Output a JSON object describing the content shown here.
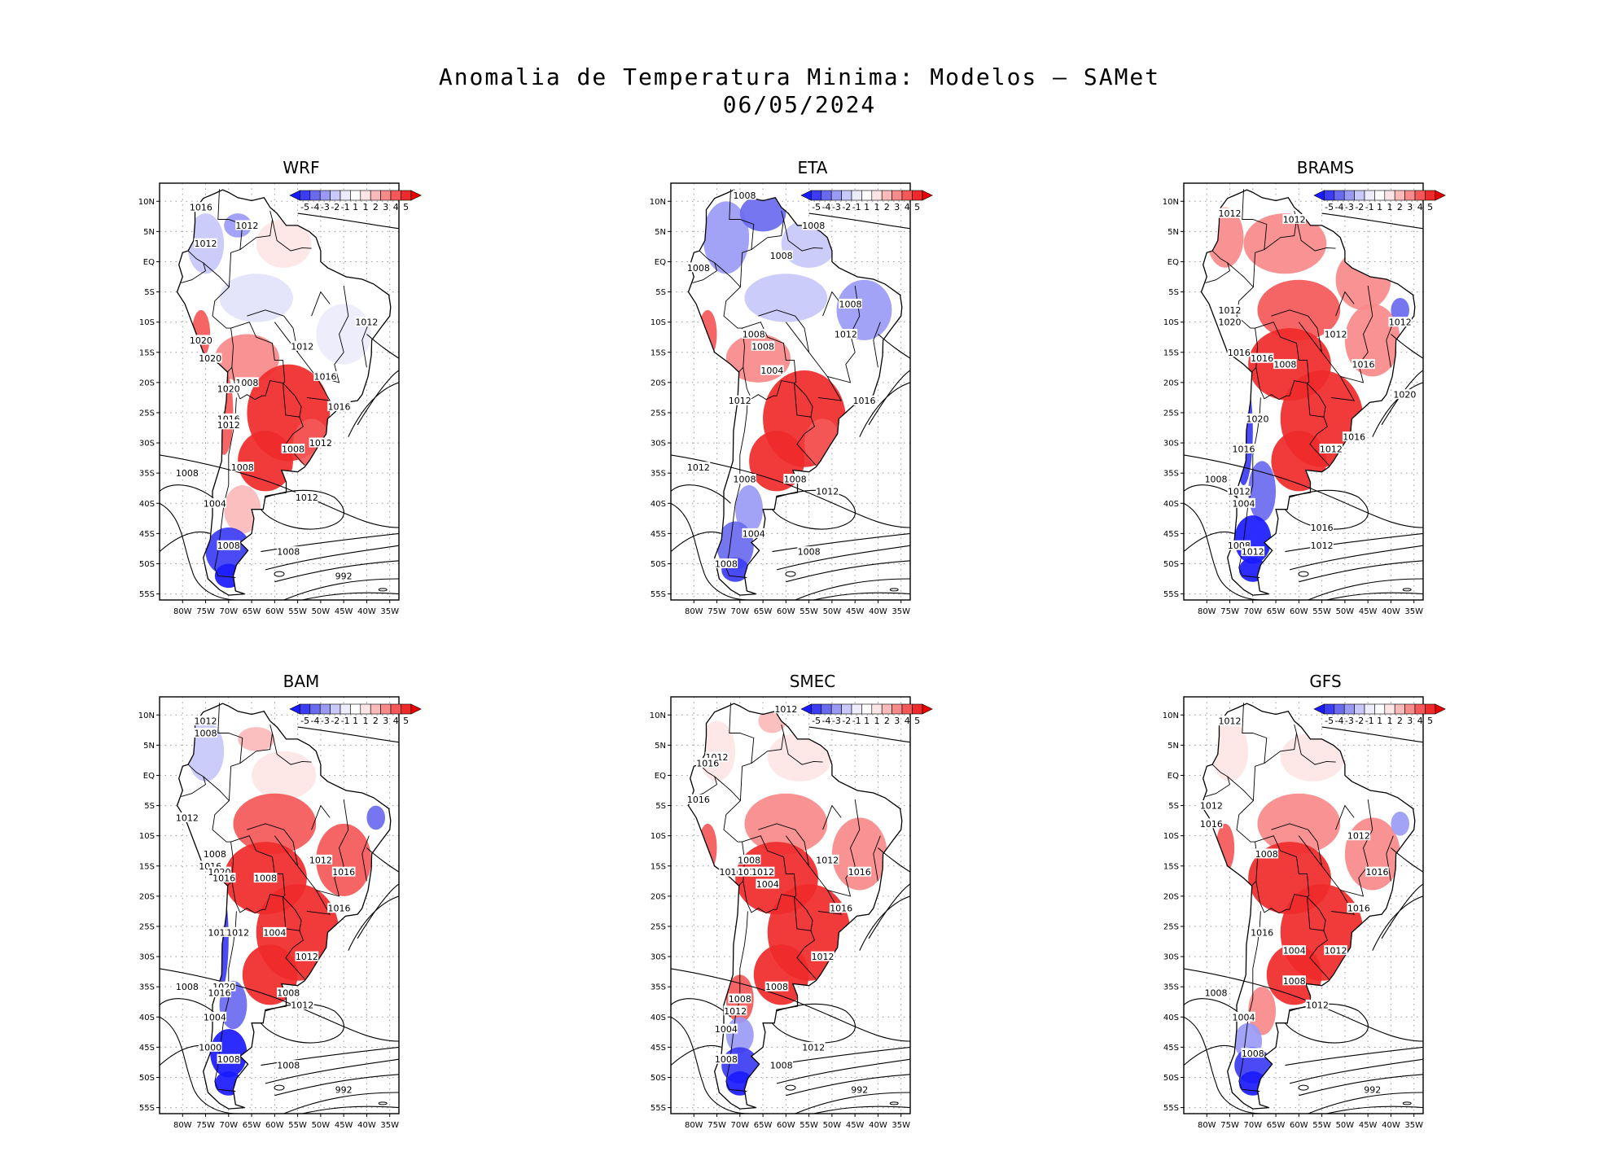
{
  "figure": {
    "title_line1": "Anomalia de Temperatura Minima: Modelos — SAMet",
    "title_line2": "06/05/2024"
  },
  "axes": {
    "lat_labels": [
      "10N",
      "5N",
      "EQ",
      "5S",
      "10S",
      "15S",
      "20S",
      "25S",
      "30S",
      "35S",
      "40S",
      "45S",
      "50S",
      "55S"
    ],
    "lon_labels": [
      "80W",
      "75W",
      "70W",
      "65W",
      "60W",
      "55W",
      "50W",
      "45W",
      "40W",
      "35W"
    ]
  },
  "colorbar": {
    "tick_labels": [
      "-5",
      "-4",
      "-3",
      "-2",
      "-1",
      "1",
      "1",
      "2",
      "3",
      "4",
      "5"
    ],
    "colors": [
      "#1a1aff",
      "#3c3cf5",
      "#6a6af0",
      "#9a9af5",
      "#c8c8fa",
      "#ececfc",
      "#ffffff",
      "#fde5e5",
      "#fbbaba",
      "#f88a8a",
      "#f45858",
      "#f02a2a",
      "#e60000"
    ]
  },
  "panels": [
    {
      "name": "WRF",
      "isobars": [
        {
          "label": "1016",
          "lat": 9,
          "lon": -76
        },
        {
          "label": "1012",
          "lat": 6,
          "lon": -66
        },
        {
          "label": "1012",
          "lat": 3,
          "lon": -75
        },
        {
          "label": "1012",
          "lat": -10,
          "lon": -40
        },
        {
          "label": "1020",
          "lat": -13,
          "lon": -76
        },
        {
          "label": "1020",
          "lat": -16,
          "lon": -74
        },
        {
          "label": "1012",
          "lat": -14,
          "lon": -54
        },
        {
          "label": "1016",
          "lat": -19,
          "lon": -49
        },
        {
          "label": "1008",
          "lat": -20,
          "lon": -66
        },
        {
          "label": "1020",
          "lat": -21,
          "lon": -70
        },
        {
          "label": "1016",
          "lat": -24,
          "lon": -46
        },
        {
          "label": "1016",
          "lat": -26,
          "lon": -70
        },
        {
          "label": "1012",
          "lat": -27,
          "lon": -70
        },
        {
          "label": "1008",
          "lat": -31,
          "lon": -56
        },
        {
          "label": "1012",
          "lat": -30,
          "lon": -50
        },
        {
          "label": "1008",
          "lat": -34,
          "lon": -67
        },
        {
          "label": "1008",
          "lat": -35,
          "lon": -79
        },
        {
          "label": "1012",
          "lat": -39,
          "lon": -53
        },
        {
          "label": "1004",
          "lat": -40,
          "lon": -73
        },
        {
          "label": "1008",
          "lat": -47,
          "lon": -70
        },
        {
          "label": "1008",
          "lat": -48,
          "lon": -57
        },
        {
          "label": "992",
          "lat": -52,
          "lon": -45
        }
      ]
    },
    {
      "name": "ETA",
      "isobars": [
        {
          "label": "1008",
          "lat": 11,
          "lon": -69
        },
        {
          "label": "1008",
          "lat": 6,
          "lon": -54
        },
        {
          "label": "1008",
          "lat": 1,
          "lon": -61
        },
        {
          "label": "1008",
          "lat": -1,
          "lon": -79
        },
        {
          "label": "1008",
          "lat": -7,
          "lon": -46
        },
        {
          "label": "1012",
          "lat": -12,
          "lon": -47
        },
        {
          "label": "1008",
          "lat": -12,
          "lon": -67
        },
        {
          "label": "1008",
          "lat": -14,
          "lon": -65
        },
        {
          "label": "1004",
          "lat": -18,
          "lon": -63
        },
        {
          "label": "1012",
          "lat": -23,
          "lon": -70
        },
        {
          "label": "1016",
          "lat": -23,
          "lon": -43
        },
        {
          "label": "1012",
          "lat": -34,
          "lon": -79
        },
        {
          "label": "1008",
          "lat": -36,
          "lon": -69
        },
        {
          "label": "1008",
          "lat": -36,
          "lon": -58
        },
        {
          "label": "1012",
          "lat": -38,
          "lon": -51
        },
        {
          "label": "1004",
          "lat": -45,
          "lon": -67
        },
        {
          "label": "1008",
          "lat": -48,
          "lon": -55
        },
        {
          "label": "1008",
          "lat": -50,
          "lon": -73
        }
      ]
    },
    {
      "name": "BRAMS",
      "isobars": [
        {
          "label": "1012",
          "lat": 8,
          "lon": -75
        },
        {
          "label": "1012",
          "lat": 7,
          "lon": -61
        },
        {
          "label": "1012",
          "lat": -8,
          "lon": -75
        },
        {
          "label": "1012",
          "lat": -10,
          "lon": -38
        },
        {
          "label": "1020",
          "lat": -10,
          "lon": -75
        },
        {
          "label": "1012",
          "lat": -12,
          "lon": -52
        },
        {
          "label": "1016",
          "lat": -15,
          "lon": -73
        },
        {
          "label": "1016",
          "lat": -16,
          "lon": -68
        },
        {
          "label": "1016",
          "lat": -17,
          "lon": -46
        },
        {
          "label": "1008",
          "lat": -17,
          "lon": -63
        },
        {
          "label": "1020",
          "lat": -22,
          "lon": -37
        },
        {
          "label": "1020",
          "lat": -26,
          "lon": -69
        },
        {
          "label": "1016",
          "lat": -29,
          "lon": -48
        },
        {
          "label": "1016",
          "lat": -31,
          "lon": -72
        },
        {
          "label": "1012",
          "lat": -31,
          "lon": -53
        },
        {
          "label": "1008",
          "lat": -36,
          "lon": -78
        },
        {
          "label": "1012",
          "lat": -38,
          "lon": -73
        },
        {
          "label": "1004",
          "lat": -40,
          "lon": -72
        },
        {
          "label": "1016",
          "lat": -44,
          "lon": -55
        },
        {
          "label": "1008",
          "lat": -47,
          "lon": -73
        },
        {
          "label": "1012",
          "lat": -47,
          "lon": -55
        },
        {
          "label": "1012",
          "lat": -48,
          "lon": -70
        }
      ]
    },
    {
      "name": "BAM",
      "isobars": [
        {
          "label": "1012",
          "lat": 9,
          "lon": -75
        },
        {
          "label": "1008",
          "lat": 7,
          "lon": -75
        },
        {
          "label": "1012",
          "lat": -7,
          "lon": -79
        },
        {
          "label": "1008",
          "lat": -13,
          "lon": -73
        },
        {
          "label": "1012",
          "lat": -14,
          "lon": -50
        },
        {
          "label": "1016",
          "lat": -15,
          "lon": -74
        },
        {
          "label": "1016",
          "lat": -16,
          "lon": -45
        },
        {
          "label": "1020",
          "lat": -16,
          "lon": -72
        },
        {
          "label": "1016",
          "lat": -17,
          "lon": -71
        },
        {
          "label": "1008",
          "lat": -17,
          "lon": -62
        },
        {
          "label": "1016",
          "lat": -22,
          "lon": -46
        },
        {
          "label": "1012",
          "lat": -26,
          "lon": -72
        },
        {
          "label": "1012",
          "lat": -26,
          "lon": -68
        },
        {
          "label": "1004",
          "lat": -26,
          "lon": -60
        },
        {
          "label": "1012",
          "lat": -30,
          "lon": -53
        },
        {
          "label": "1008",
          "lat": -35,
          "lon": -79
        },
        {
          "label": "1020",
          "lat": -35,
          "lon": -71
        },
        {
          "label": "1016",
          "lat": -36,
          "lon": -72
        },
        {
          "label": "1008",
          "lat": -36,
          "lon": -57
        },
        {
          "label": "1012",
          "lat": -38,
          "lon": -54
        },
        {
          "label": "1004",
          "lat": -40,
          "lon": -73
        },
        {
          "label": "1000",
          "lat": -45,
          "lon": -74
        },
        {
          "label": "1008",
          "lat": -47,
          "lon": -70
        },
        {
          "label": "1008",
          "lat": -48,
          "lon": -57
        },
        {
          "label": "992",
          "lat": -52,
          "lon": -45
        }
      ]
    },
    {
      "name": "SMEC",
      "isobars": [
        {
          "label": "1012",
          "lat": 11,
          "lon": -60
        },
        {
          "label": "1012",
          "lat": 3,
          "lon": -75
        },
        {
          "label": "1016",
          "lat": 2,
          "lon": -77
        },
        {
          "label": "1016",
          "lat": -4,
          "lon": -79
        },
        {
          "label": "1012",
          "lat": -14,
          "lon": -51
        },
        {
          "label": "1008",
          "lat": -14,
          "lon": -68
        },
        {
          "label": "1016",
          "lat": -16,
          "lon": -44
        },
        {
          "label": "1016",
          "lat": -16,
          "lon": -72
        },
        {
          "label": "1016",
          "lat": -16,
          "lon": -68
        },
        {
          "label": "1012",
          "lat": -16,
          "lon": -65
        },
        {
          "label": "1004",
          "lat": -18,
          "lon": -64
        },
        {
          "label": "1016",
          "lat": -22,
          "lon": -48
        },
        {
          "label": "1012",
          "lat": -30,
          "lon": -52
        },
        {
          "label": "1008",
          "lat": -35,
          "lon": -62
        },
        {
          "label": "1008",
          "lat": -37,
          "lon": -70
        },
        {
          "label": "1012",
          "lat": -39,
          "lon": -71
        },
        {
          "label": "1004",
          "lat": -42,
          "lon": -73
        },
        {
          "label": "1012",
          "lat": -45,
          "lon": -54
        },
        {
          "label": "1008",
          "lat": -47,
          "lon": -73
        },
        {
          "label": "1008",
          "lat": -48,
          "lon": -61
        },
        {
          "label": "992",
          "lat": -52,
          "lon": -44
        }
      ]
    },
    {
      "name": "GFS",
      "isobars": [
        {
          "label": "1012",
          "lat": 9,
          "lon": -75
        },
        {
          "label": "1012",
          "lat": -5,
          "lon": -79
        },
        {
          "label": "1016",
          "lat": -8,
          "lon": -79
        },
        {
          "label": "1012",
          "lat": -10,
          "lon": -47
        },
        {
          "label": "1008",
          "lat": -13,
          "lon": -67
        },
        {
          "label": "1016",
          "lat": -16,
          "lon": -43
        },
        {
          "label": "1016",
          "lat": -22,
          "lon": -47
        },
        {
          "label": "1016",
          "lat": -26,
          "lon": -68
        },
        {
          "label": "1004",
          "lat": -29,
          "lon": -61
        },
        {
          "label": "1012",
          "lat": -29,
          "lon": -52
        },
        {
          "label": "1008",
          "lat": -34,
          "lon": -61
        },
        {
          "label": "1008",
          "lat": -36,
          "lon": -78
        },
        {
          "label": "1012",
          "lat": -38,
          "lon": -56
        },
        {
          "label": "1004",
          "lat": -40,
          "lon": -72
        },
        {
          "label": "1008",
          "lat": -46,
          "lon": -70
        },
        {
          "label": "992",
          "lat": -52,
          "lon": -44
        }
      ]
    }
  ]
}
